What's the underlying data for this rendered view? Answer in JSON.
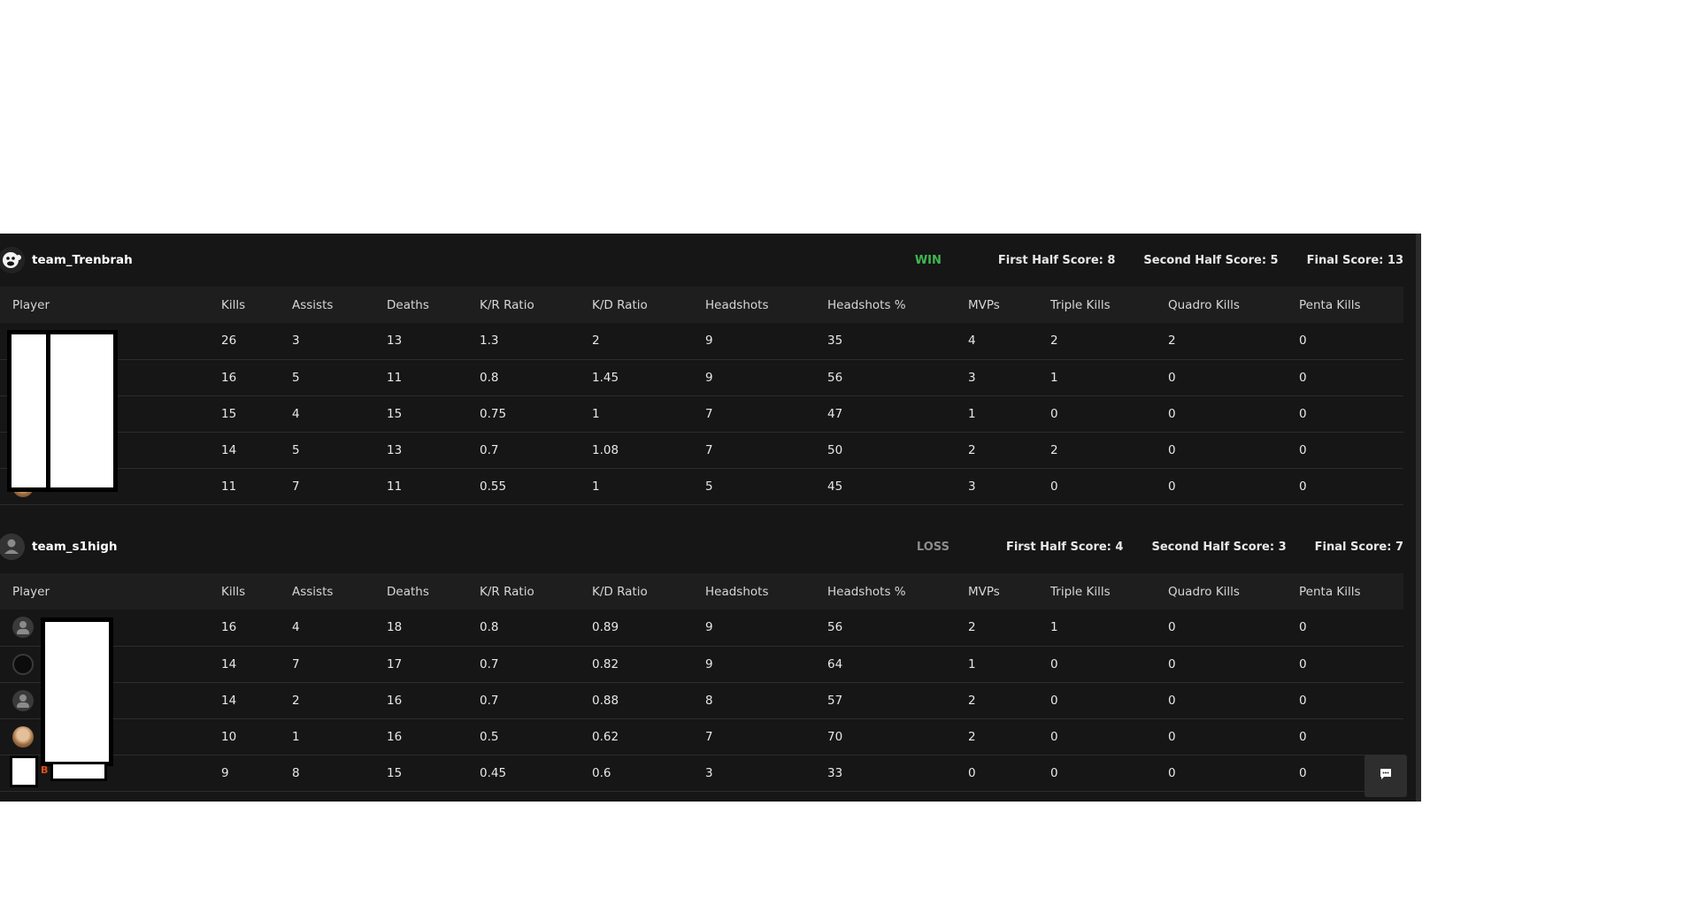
{
  "columns": [
    "Player",
    "Kills",
    "Assists",
    "Deaths",
    "K/R Ratio",
    "K/D Ratio",
    "Headshots",
    "Headshots %",
    "MVPs",
    "Triple Kills",
    "Quadro Kills",
    "Penta Kills"
  ],
  "teams": [
    {
      "name": "team_Trenbrah",
      "result": "WIN",
      "first_half": "First Half Score: 8",
      "second_half": "Second Half Score: 5",
      "final": "Final Score: 13",
      "rows": [
        [
          "26",
          "3",
          "13",
          "1.3",
          "2",
          "9",
          "35",
          "4",
          "2",
          "2",
          "0"
        ],
        [
          "16",
          "5",
          "11",
          "0.8",
          "1.45",
          "9",
          "56",
          "3",
          "1",
          "0",
          "0"
        ],
        [
          "15",
          "4",
          "15",
          "0.75",
          "1",
          "7",
          "47",
          "1",
          "0",
          "0",
          "0"
        ],
        [
          "14",
          "5",
          "13",
          "0.7",
          "1.08",
          "7",
          "50",
          "2",
          "2",
          "0",
          "0"
        ],
        [
          "11",
          "7",
          "11",
          "0.55",
          "1",
          "5",
          "45",
          "3",
          "0",
          "0",
          "0"
        ]
      ]
    },
    {
      "name": "team_s1high",
      "result": "LOSS",
      "first_half": "First Half Score: 4",
      "second_half": "Second Half Score: 3",
      "final": "Final Score: 7",
      "rows": [
        [
          "16",
          "4",
          "18",
          "0.8",
          "0.89",
          "9",
          "56",
          "2",
          "1",
          "0",
          "0"
        ],
        [
          "14",
          "7",
          "17",
          "0.7",
          "0.82",
          "9",
          "64",
          "1",
          "0",
          "0",
          "0"
        ],
        [
          "14",
          "2",
          "16",
          "0.7",
          "0.88",
          "8",
          "57",
          "2",
          "0",
          "0",
          "0"
        ],
        [
          "10",
          "1",
          "16",
          "0.5",
          "0.62",
          "7",
          "70",
          "2",
          "0",
          "0",
          "0"
        ],
        [
          "9",
          "8",
          "15",
          "0.45",
          "0.6",
          "3",
          "33",
          "0",
          "0",
          "0",
          "0"
        ]
      ],
      "tag_letter": "B"
    }
  ],
  "icons": {
    "team1_logo": "monkey-logo-icon",
    "team2_logo": "person-icon",
    "chat": "chat-icon"
  },
  "colors": {
    "win": "#3fb84f",
    "loss": "#8c8c8c",
    "tag": "#e0501c"
  }
}
